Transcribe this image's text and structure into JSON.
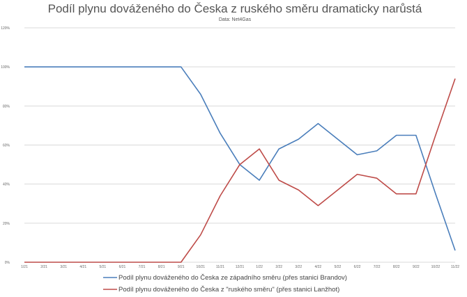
{
  "chart_data": {
    "type": "line",
    "title": "Podíl plynu dováženého do Česka z ruského směru dramaticky narůstá",
    "subtitle": "Data: Net4Gas",
    "xlabel": "",
    "ylabel": "",
    "ylim": [
      0,
      100
    ],
    "yticks": [
      "0%",
      "20%",
      "40%",
      "60%",
      "80%",
      "100%",
      "120%"
    ],
    "grid": true,
    "legend_position": "bottom",
    "categories": [
      "1/21",
      "2/21",
      "3/21",
      "4/21",
      "5/21",
      "6/21",
      "7/21",
      "8/21",
      "9/21",
      "10/21",
      "11/21",
      "12/21",
      "1/22",
      "2/22",
      "3/22",
      "4/22",
      "5/22",
      "6/22",
      "7/22",
      "8/22",
      "9/22",
      "10/22",
      "11/22"
    ],
    "series": [
      {
        "name": "Podíl plynu dováženého do Česka ze západního směru (přes stanici Brandov)",
        "color": "#4a7ebb",
        "values": [
          100,
          100,
          100,
          100,
          100,
          100,
          100,
          100,
          100,
          86,
          66,
          50,
          42,
          58,
          63,
          71,
          63,
          55,
          57,
          65,
          65,
          35,
          6
        ]
      },
      {
        "name": "Podíl plynu dováženého do Česka z \"ruského směru\" (přes stanici Lanžhot)",
        "color": "#be4b48",
        "values": [
          0,
          0,
          0,
          0,
          0,
          0,
          0,
          0,
          0,
          14,
          34,
          50,
          58,
          42,
          37,
          29,
          37,
          45,
          43,
          35,
          35,
          65,
          94
        ]
      }
    ]
  }
}
